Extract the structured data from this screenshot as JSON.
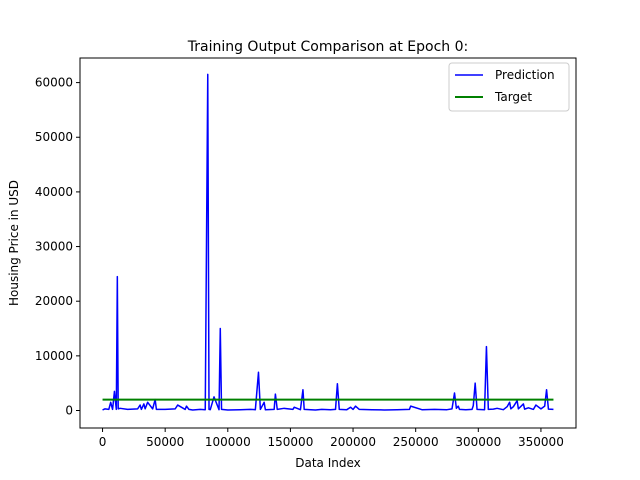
{
  "chart_data": {
    "type": "line",
    "title": "Training Output Comparison at Epoch 0:",
    "xlabel": "Data Index",
    "ylabel": "Housing Price in USD",
    "xlim": [
      -18000,
      378000
    ],
    "ylim": [
      -3200,
      64500
    ],
    "xticks": [
      0,
      50000,
      100000,
      150000,
      200000,
      250000,
      300000,
      350000
    ],
    "yticks": [
      0,
      10000,
      20000,
      30000,
      40000,
      50000,
      60000
    ],
    "grid": false,
    "legend_position": "top-right",
    "series": [
      {
        "name": "Prediction",
        "color": "#0000ff",
        "x": [
          0,
          2000,
          5000,
          6500,
          8000,
          9500,
          11000,
          11800,
          12500,
          14000,
          20000,
          28000,
          30000,
          31000,
          33000,
          34000,
          36000,
          40000,
          42000,
          43000,
          50000,
          58000,
          60000,
          66000,
          67000,
          69000,
          72000,
          78000,
          82000,
          84000,
          85000,
          86000,
          89000,
          93000,
          94000,
          95000,
          100000,
          110000,
          118000,
          122000,
          124500,
          126000,
          129000,
          130000,
          137000,
          138000,
          139500,
          145000,
          152000,
          153000,
          158000,
          160000,
          161000,
          170000,
          175000,
          182000,
          186000,
          187500,
          189000,
          195000,
          198000,
          200000,
          202000,
          205000,
          215000,
          225000,
          235000,
          245000,
          246000,
          255000,
          265000,
          275000,
          279000,
          281000,
          282500,
          284000,
          285000,
          290000,
          295000,
          296000,
          297500,
          299000,
          305000,
          306500,
          308000,
          312000,
          315000,
          320000,
          323000,
          325000,
          326000,
          328000,
          331000,
          332000,
          336000,
          337000,
          340000,
          344000,
          346000,
          350000,
          353000,
          354500,
          356000,
          360000
        ],
        "y": [
          100,
          300,
          200,
          1500,
          200,
          3500,
          200,
          24500,
          300,
          400,
          200,
          300,
          1000,
          200,
          1200,
          300,
          1500,
          300,
          2000,
          200,
          200,
          300,
          1000,
          200,
          800,
          200,
          100,
          200,
          150,
          61500,
          200,
          150,
          2500,
          150,
          15000,
          200,
          100,
          150,
          200,
          150,
          7000,
          200,
          1500,
          150,
          200,
          3000,
          200,
          400,
          200,
          600,
          150,
          3800,
          200,
          100,
          200,
          150,
          200,
          4900,
          200,
          150,
          600,
          200,
          800,
          200,
          150,
          100,
          150,
          200,
          800,
          150,
          200,
          150,
          300,
          3200,
          400,
          800,
          200,
          150,
          200,
          900,
          5000,
          200,
          150,
          11700,
          200,
          250,
          400,
          150,
          700,
          1500,
          300,
          700,
          1800,
          300,
          1200,
          250,
          500,
          200,
          1000,
          300,
          800,
          3800,
          250,
          200
        ]
      },
      {
        "name": "Target",
        "color": "#008000",
        "x": [
          0,
          360000
        ],
        "y": [
          2000,
          2000
        ]
      }
    ]
  }
}
